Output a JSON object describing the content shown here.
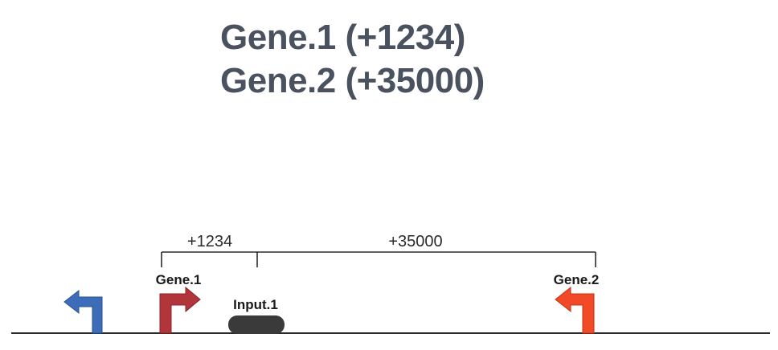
{
  "headline": {
    "line1": "Gene.1 (+1234)",
    "line2": "Gene.2 (+35000)"
  },
  "distances": {
    "gene1_label": "+1234",
    "gene2_label": "+35000"
  },
  "genes": {
    "gene1": {
      "label": "Gene.1",
      "color": "#b1353a"
    },
    "gene2": {
      "label": "Gene.2",
      "color": "#f24a26"
    },
    "unlabeled": {
      "color": "#3d6cb9"
    }
  },
  "input": {
    "label": "Input.1",
    "color": "#3a3a3a"
  }
}
